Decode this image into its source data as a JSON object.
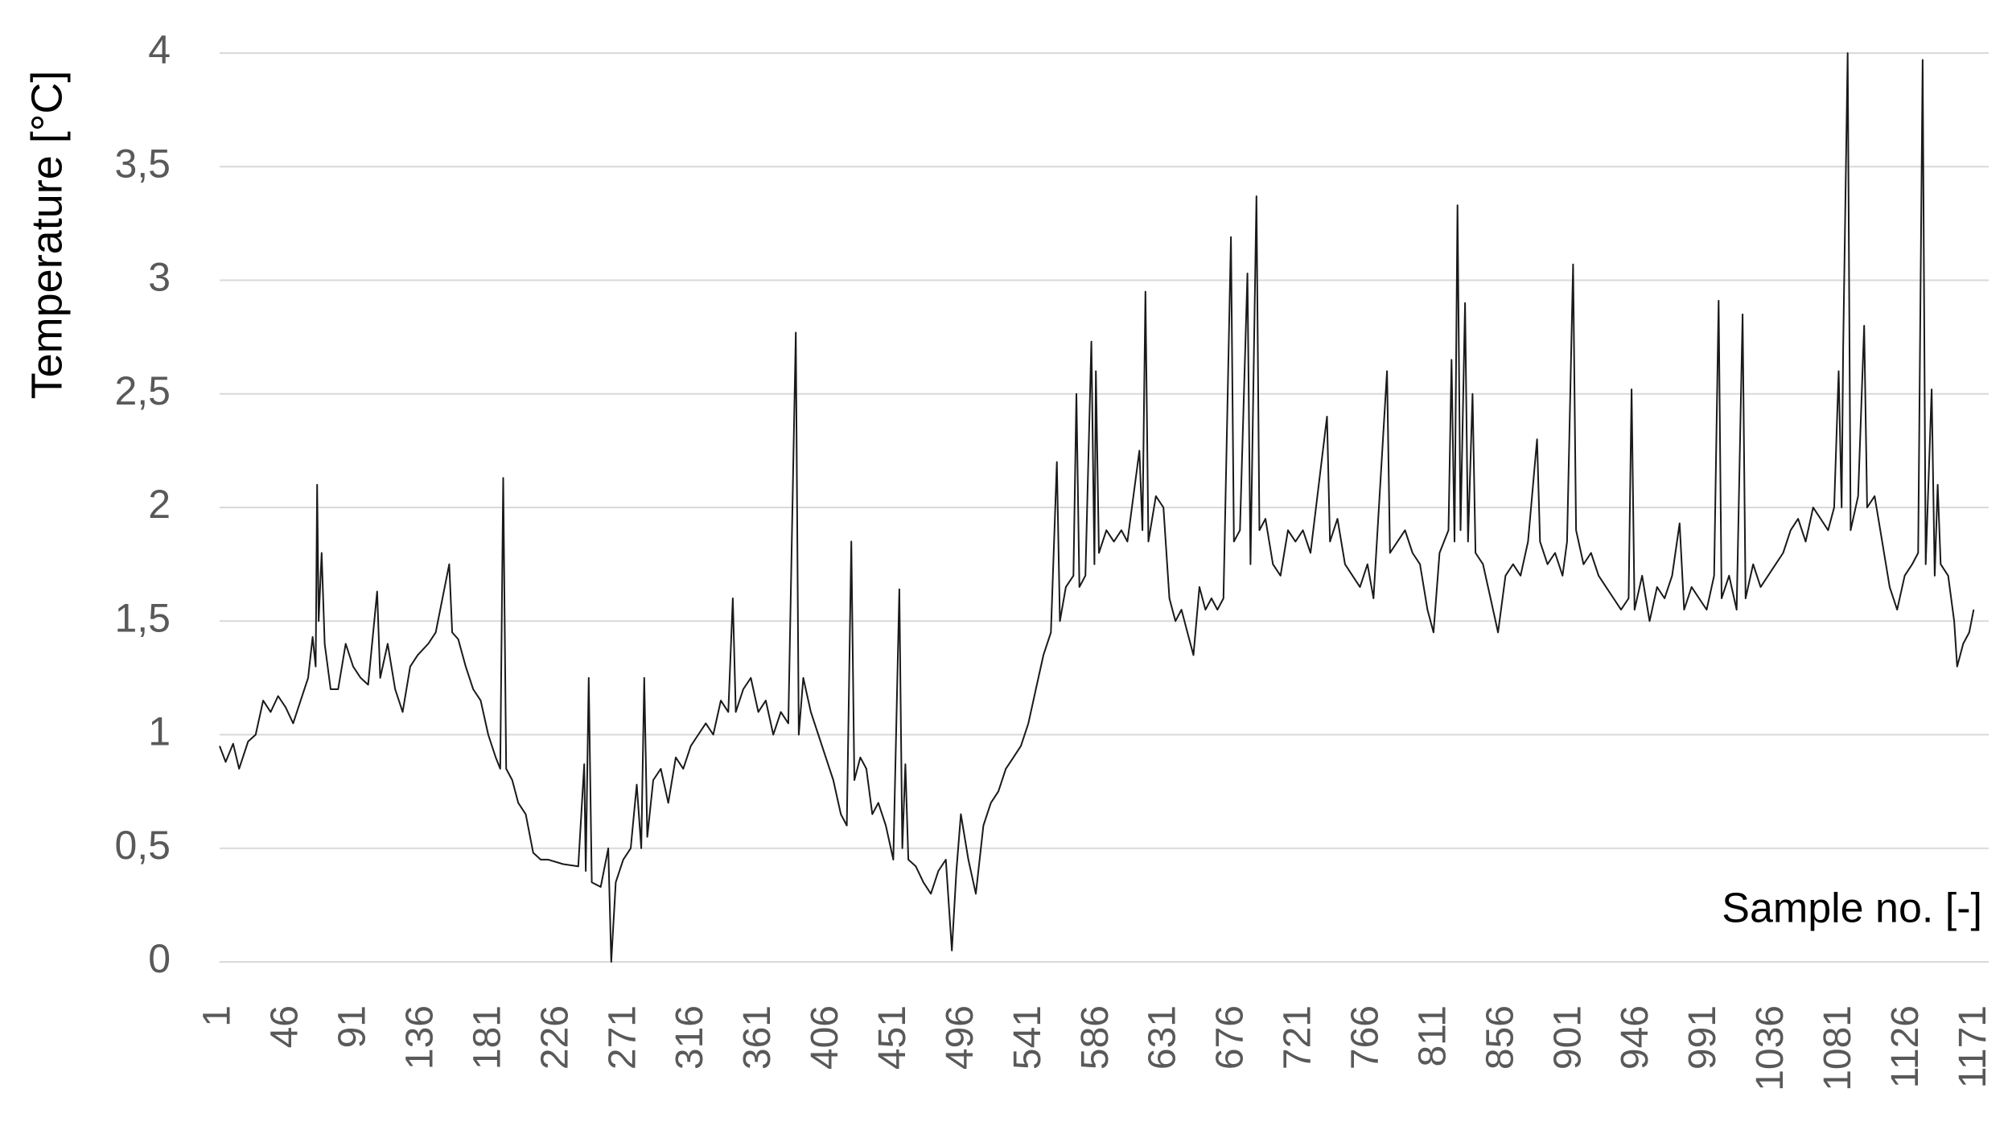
{
  "chart_data": {
    "type": "line",
    "y_label": "Temperature [°C]",
    "x_label": "Sample no. [-]",
    "xlim": [
      1,
      1180
    ],
    "xticks": [
      1,
      46,
      91,
      136,
      181,
      226,
      271,
      316,
      361,
      406,
      451,
      496,
      541,
      586,
      631,
      676,
      721,
      766,
      811,
      856,
      901,
      946,
      991,
      1036,
      1081,
      1126,
      1171
    ],
    "ylim": [
      0,
      4
    ],
    "yticks": [
      0,
      {
        "value": 0.5,
        "label": "0,5"
      },
      1,
      {
        "value": 1.5,
        "label": "1,5"
      },
      2,
      {
        "value": 2.5,
        "label": "2,5"
      },
      3,
      {
        "value": 3.5,
        "label": "3,5"
      },
      4
    ],
    "grid": true,
    "series": [
      {
        "color": "#1a1a1a",
        "x": [
          1,
          5,
          10,
          14,
          20,
          25,
          30,
          35,
          40,
          45,
          50,
          55,
          60,
          63,
          65,
          66,
          67,
          69,
          71,
          75,
          80,
          85,
          90,
          95,
          100,
          106,
          108,
          113,
          118,
          123,
          128,
          133,
          140,
          145,
          154,
          156,
          160,
          165,
          170,
          175,
          180,
          185,
          188,
          190,
          192,
          196,
          200,
          205,
          210,
          215,
          220,
          230,
          240,
          244,
          245,
          247,
          249,
          255,
          260,
          262,
          265,
          270,
          275,
          279,
          282,
          284,
          286,
          290,
          295,
          300,
          305,
          310,
          315,
          320,
          325,
          330,
          335,
          340,
          343,
          345,
          350,
          355,
          360,
          365,
          370,
          375,
          380,
          385,
          387,
          390,
          395,
          400,
          405,
          410,
          415,
          419,
          422,
          424,
          428,
          432,
          436,
          440,
          445,
          450,
          454,
          456,
          458,
          460,
          465,
          470,
          475,
          480,
          485,
          489,
          492,
          495,
          500,
          505,
          510,
          515,
          520,
          525,
          530,
          535,
          540,
          545,
          550,
          555,
          559,
          561,
          565,
          570,
          572,
          574,
          578,
          582,
          584,
          585,
          587,
          592,
          597,
          602,
          606,
          614,
          616,
          618,
          620,
          625,
          630,
          634,
          638,
          642,
          646,
          650,
          654,
          658,
          662,
          666,
          670,
          675,
          677,
          681,
          686,
          688,
          692,
          694,
          698,
          703,
          708,
          713,
          718,
          723,
          728,
          739,
          741,
          746,
          751,
          756,
          761,
          766,
          770,
          779,
          781,
          786,
          791,
          796,
          801,
          806,
          810,
          814,
          820,
          822,
          824,
          826,
          828,
          831,
          833,
          836,
          838,
          843,
          848,
          853,
          858,
          863,
          868,
          873,
          879,
          881,
          886,
          891,
          896,
          899,
          903,
          905,
          910,
          915,
          920,
          925,
          930,
          935,
          940,
          942,
          944,
          949,
          954,
          959,
          964,
          969,
          974,
          977,
          982,
          987,
          992,
          997,
          1000,
          1002,
          1007,
          1012,
          1016,
          1018,
          1023,
          1028,
          1033,
          1038,
          1043,
          1048,
          1053,
          1058,
          1063,
          1068,
          1073,
          1077,
          1080,
          1082,
          1083,
          1086,
          1088,
          1093,
          1097,
          1099,
          1104,
          1109,
          1114,
          1119,
          1124,
          1129,
          1133,
          1136,
          1138,
          1142,
          1144,
          1146,
          1148,
          1153,
          1157,
          1159,
          1163,
          1167,
          1170
        ],
        "values": [
          0.95,
          0.88,
          0.96,
          0.85,
          0.97,
          1.0,
          1.15,
          1.1,
          1.17,
          1.12,
          1.05,
          1.15,
          1.25,
          1.43,
          1.3,
          2.1,
          1.5,
          1.8,
          1.4,
          1.2,
          1.2,
          1.4,
          1.3,
          1.25,
          1.22,
          1.63,
          1.25,
          1.4,
          1.2,
          1.1,
          1.3,
          1.35,
          1.4,
          1.45,
          1.75,
          1.45,
          1.42,
          1.3,
          1.2,
          1.15,
          1.0,
          0.9,
          0.85,
          2.13,
          0.85,
          0.8,
          0.7,
          0.65,
          0.48,
          0.45,
          0.45,
          0.43,
          0.42,
          0.87,
          0.4,
          1.25,
          0.35,
          0.33,
          0.5,
          0.0,
          0.35,
          0.45,
          0.5,
          0.78,
          0.5,
          1.25,
          0.55,
          0.8,
          0.85,
          0.7,
          0.9,
          0.85,
          0.95,
          1.0,
          1.05,
          1.0,
          1.15,
          1.1,
          1.6,
          1.1,
          1.2,
          1.25,
          1.1,
          1.15,
          1.0,
          1.1,
          1.05,
          2.77,
          1.0,
          1.25,
          1.1,
          1.0,
          0.9,
          0.8,
          0.65,
          0.6,
          1.85,
          0.8,
          0.9,
          0.85,
          0.65,
          0.7,
          0.6,
          0.45,
          1.64,
          0.5,
          0.87,
          0.45,
          0.42,
          0.35,
          0.3,
          0.4,
          0.45,
          0.05,
          0.4,
          0.65,
          0.45,
          0.3,
          0.6,
          0.7,
          0.75,
          0.85,
          0.9,
          0.95,
          1.05,
          1.2,
          1.35,
          1.45,
          2.2,
          1.5,
          1.65,
          1.7,
          2.5,
          1.65,
          1.7,
          2.73,
          1.75,
          2.6,
          1.8,
          1.9,
          1.85,
          1.9,
          1.85,
          2.25,
          1.9,
          2.95,
          1.85,
          2.05,
          2.0,
          1.6,
          1.5,
          1.55,
          1.45,
          1.35,
          1.65,
          1.55,
          1.6,
          1.55,
          1.6,
          3.19,
          1.85,
          1.9,
          3.03,
          1.75,
          3.37,
          1.9,
          1.95,
          1.75,
          1.7,
          1.9,
          1.85,
          1.9,
          1.8,
          2.4,
          1.85,
          1.95,
          1.75,
          1.7,
          1.65,
          1.75,
          1.6,
          2.6,
          1.8,
          1.85,
          1.9,
          1.8,
          1.75,
          1.55,
          1.45,
          1.8,
          1.9,
          2.65,
          1.85,
          3.33,
          1.9,
          2.9,
          1.85,
          2.5,
          1.8,
          1.75,
          1.6,
          1.45,
          1.7,
          1.75,
          1.7,
          1.85,
          2.3,
          1.85,
          1.75,
          1.8,
          1.7,
          1.85,
          3.07,
          1.9,
          1.75,
          1.8,
          1.7,
          1.65,
          1.6,
          1.55,
          1.6,
          2.52,
          1.55,
          1.7,
          1.5,
          1.65,
          1.6,
          1.7,
          1.93,
          1.55,
          1.65,
          1.6,
          1.55,
          1.7,
          2.91,
          1.6,
          1.7,
          1.55,
          2.85,
          1.6,
          1.75,
          1.65,
          1.7,
          1.75,
          1.8,
          1.9,
          1.95,
          1.85,
          2.0,
          1.95,
          1.9,
          2.0,
          2.6,
          2.0,
          2.7,
          4.0,
          1.9,
          2.05,
          2.8,
          2.0,
          2.05,
          1.85,
          1.65,
          1.55,
          1.7,
          1.75,
          1.8,
          3.97,
          1.75,
          2.52,
          1.7,
          2.1,
          1.75,
          1.7,
          1.5,
          1.3,
          1.4,
          1.45,
          1.55
        ]
      }
    ]
  }
}
